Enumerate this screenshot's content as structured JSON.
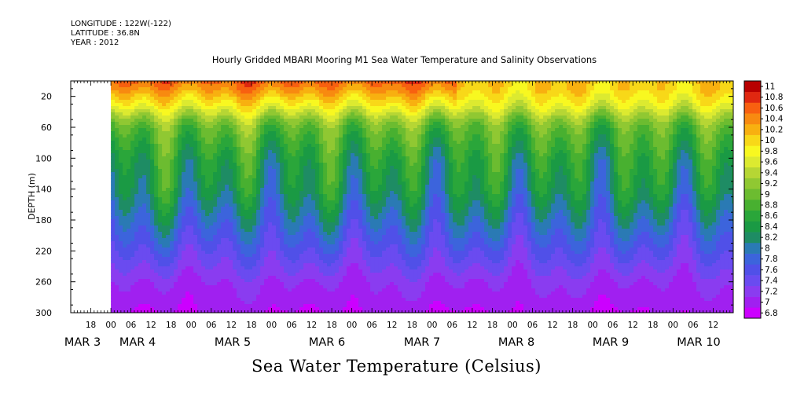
{
  "header": {
    "longitude": "LONGITUDE : 122W(-122)",
    "latitude": "LATITUDE : 36.8N",
    "year": "YEAR : 2012"
  },
  "chart_data": {
    "type": "heatmap",
    "title": "Hourly Gridded MBARI Mooring M1 Sea Water Temperature and Salinity Observations",
    "caption": "Sea Water Temperature (Celsius)",
    "ylabel": "DEPTH (m)",
    "ylim": [
      300,
      0
    ],
    "y_inverted": true,
    "y_ticks": [
      20,
      60,
      100,
      140,
      180,
      220,
      260,
      300
    ],
    "x_range_hours": [
      "MAR 2 12:00",
      "MAR 10 18:00"
    ],
    "data_start": "MAR 3 00:00",
    "x_hour_ticks": [
      "18",
      "00",
      "06",
      "12",
      "18",
      "00",
      "06",
      "12",
      "18",
      "00",
      "06",
      "12",
      "18",
      "00",
      "06",
      "12",
      "18",
      "00",
      "06",
      "12",
      "18",
      "00",
      "06",
      "12",
      "18",
      "00",
      "06",
      "12",
      "18",
      "00",
      "06",
      "12"
    ],
    "x_day_labels": [
      "MAR  3",
      "MAR  4",
      "MAR  5",
      "MAR  6",
      "MAR  7",
      "MAR  8",
      "MAR  9",
      "MAR 10"
    ],
    "colorbar": {
      "levels": [
        6.8,
        7,
        7.2,
        7.4,
        7.6,
        7.8,
        8,
        8.2,
        8.4,
        8.6,
        8.8,
        9,
        9.2,
        9.4,
        9.6,
        9.8,
        10,
        10.2,
        10.4,
        10.6,
        10.8,
        11
      ],
      "labels": [
        "11",
        "10.8",
        "10.6",
        "10.4",
        "10.2",
        "10",
        "9.8",
        "9.6",
        "9.4",
        "9.2",
        "9",
        "8.8",
        "8.6",
        "8.4",
        "8.2",
        "8",
        "7.8",
        "7.6",
        "7.4",
        "7.2",
        "7",
        "6.8"
      ],
      "colors": [
        "#cc00ff",
        "#a020f0",
        "#8a3cf0",
        "#6a4bf0",
        "#5050e8",
        "#3c64dc",
        "#2a7ab4",
        "#1e8c64",
        "#1a9a44",
        "#2aa63a",
        "#48b030",
        "#6cbc30",
        "#90c832",
        "#b6d634",
        "#dcea30",
        "#f8f820",
        "#f8d818",
        "#f8b010",
        "#f88a10",
        "#f86010",
        "#e02810",
        "#b80000"
      ]
    },
    "temperature_profile": {
      "depths_m": [
        0,
        10,
        20,
        30,
        40,
        50,
        60,
        80,
        100,
        120,
        140,
        160,
        180,
        200,
        220,
        240,
        260,
        280,
        300
      ],
      "temps_c": [
        10.3,
        10.2,
        10.0,
        9.8,
        9.5,
        9.2,
        9.0,
        8.8,
        8.6,
        8.5,
        8.4,
        8.2,
        8.0,
        7.8,
        7.6,
        7.4,
        7.2,
        7.1,
        7.0
      ]
    }
  }
}
